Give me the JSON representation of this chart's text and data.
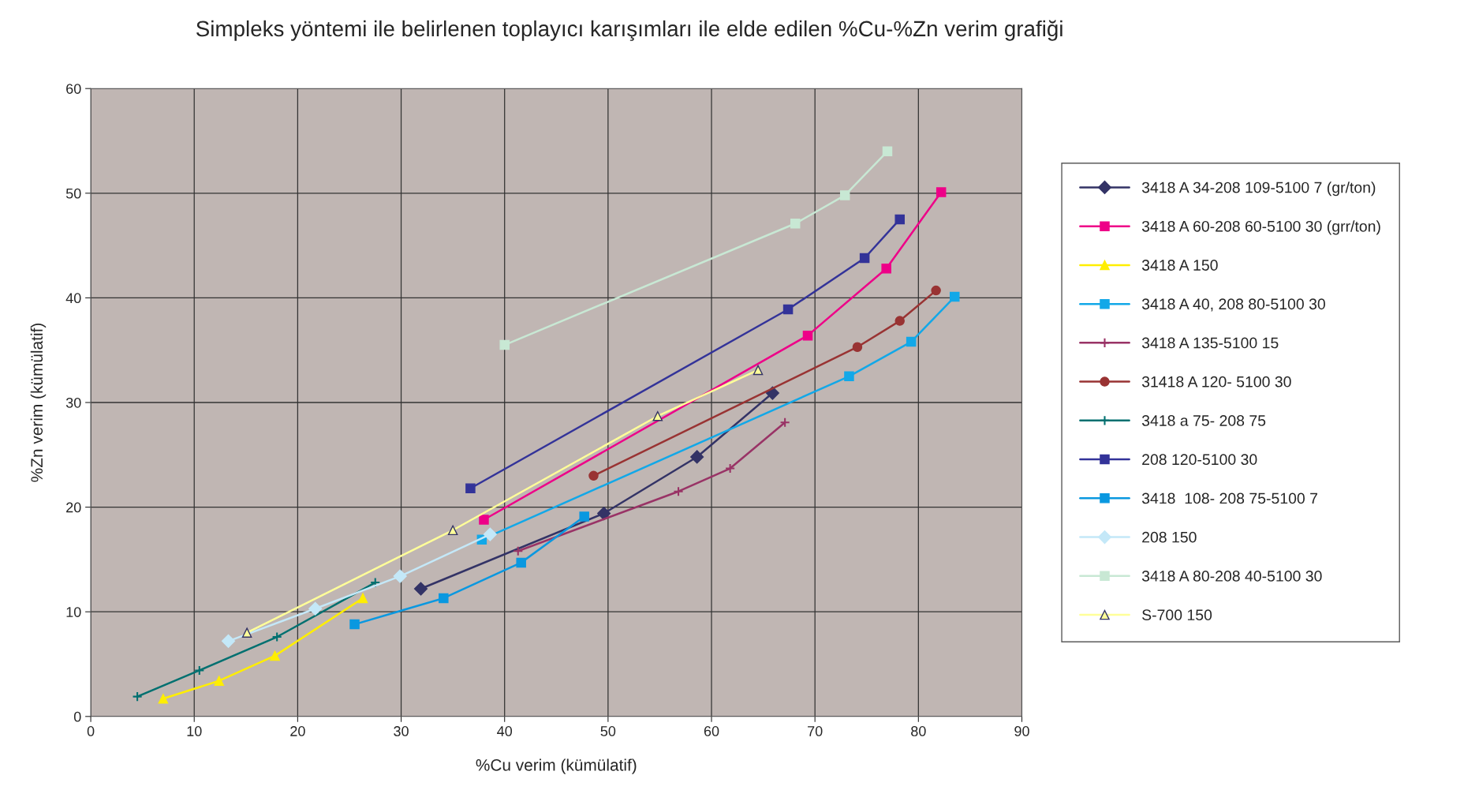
{
  "chart_data": {
    "type": "line",
    "title": "Simpleks yöntemi ile belirlenen toplayıcı karışımları ile elde edilen %Cu-%Zn verim grafiği",
    "xlabel": "%Cu verim (kümülatif)",
    "ylabel": "%Zn verim (kümülatif)",
    "xlim": [
      0,
      90
    ],
    "xticks": [
      0,
      10,
      20,
      30,
      40,
      50,
      60,
      70,
      80,
      90
    ],
    "ylim": [
      0,
      60
    ],
    "yticks": [
      0,
      10,
      20,
      30,
      40,
      50,
      60
    ],
    "grid": true,
    "legend": "right",
    "series": [
      {
        "name": "3418 A 34-208 109-5100 7 (gr/ton)",
        "color": "#333366",
        "marker": "diamond",
        "x": [
          31.9,
          49.6,
          58.6,
          65.9
        ],
        "values": [
          12.2,
          19.4,
          24.8,
          30.9
        ]
      },
      {
        "name": "3418 A 60-208 60-5100 30 (grr/ton)",
        "color": "#ee0088",
        "marker": "square",
        "x": [
          38.0,
          69.3,
          76.9,
          82.2
        ],
        "values": [
          18.8,
          36.4,
          42.8,
          50.1
        ]
      },
      {
        "name": "3418 A 150",
        "color": "#ffee00",
        "marker": "triangle",
        "x": [
          7.0,
          12.4,
          17.8,
          26.3
        ],
        "values": [
          1.7,
          3.4,
          5.8,
          11.3
        ]
      },
      {
        "name": "3418 A 40, 208 80-5100 30",
        "color": "#12a8e8",
        "marker": "square",
        "x": [
          37.8,
          73.3,
          79.3,
          83.5
        ],
        "values": [
          16.9,
          32.5,
          35.8,
          40.1
        ]
      },
      {
        "name": "3418 A 135-5100 15",
        "color": "#993366",
        "marker": "cross",
        "x": [
          41.3,
          56.8,
          61.8,
          67.1
        ],
        "values": [
          15.8,
          21.5,
          23.7,
          28.1
        ]
      },
      {
        "name": "31418 A 120- 5100 30",
        "color": "#993333",
        "marker": "circle",
        "x": [
          48.6,
          74.1,
          78.2,
          81.7
        ],
        "values": [
          23.0,
          35.3,
          37.8,
          40.7
        ]
      },
      {
        "name": "3418 a 75- 208 75",
        "color": "#007070",
        "marker": "cross",
        "x": [
          4.5,
          10.5,
          18.0,
          27.5
        ],
        "values": [
          1.9,
          4.4,
          7.6,
          12.8
        ]
      },
      {
        "name": "208 120-5100 30",
        "color": "#333399",
        "marker": "square",
        "x": [
          36.7,
          67.4,
          74.8,
          78.2
        ],
        "values": [
          21.8,
          38.9,
          43.8,
          47.5
        ]
      },
      {
        "name": "3418  108- 208 75-5100 7",
        "color": "#0a98e0",
        "marker": "square",
        "x": [
          25.5,
          34.1,
          41.6,
          47.7
        ],
        "values": [
          8.8,
          11.3,
          14.7,
          19.1
        ]
      },
      {
        "name": "208 150",
        "color": "#c4e8f8",
        "marker": "diamond",
        "x": [
          13.3,
          21.7,
          29.9,
          38.6
        ],
        "values": [
          7.2,
          10.3,
          13.4,
          17.4
        ]
      },
      {
        "name": "3418 A 80-208 40-5100 30",
        "color": "#c8e8d4",
        "marker": "square",
        "x": [
          40.0,
          68.1,
          72.9,
          77.0
        ],
        "values": [
          35.5,
          47.1,
          49.8,
          54.0
        ]
      },
      {
        "name": "S-700 150",
        "color": "#ffff99",
        "marker": "triangle",
        "x": [
          15.1,
          35.0,
          54.8,
          64.5
        ],
        "values": [
          8.0,
          17.8,
          28.7,
          33.1
        ]
      }
    ]
  }
}
